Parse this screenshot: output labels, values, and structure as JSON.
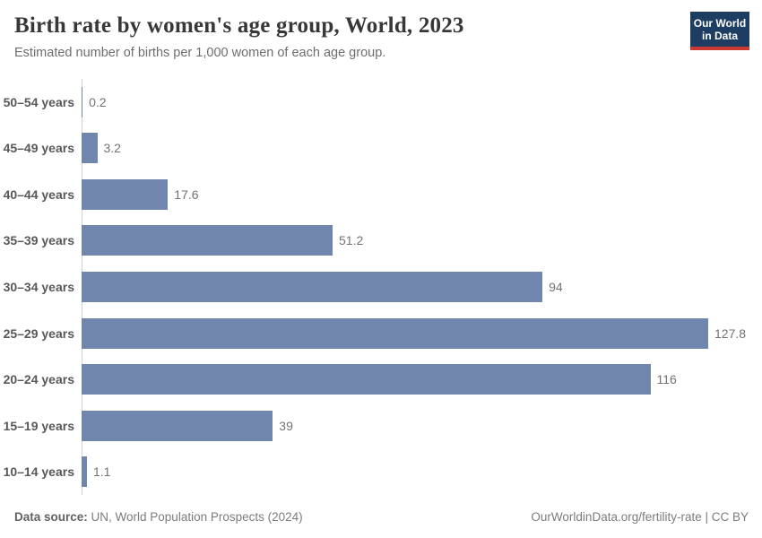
{
  "header": {
    "title": "Birth rate by women's age group, World, 2023",
    "subtitle": "Estimated number of births per 1,000 women of each age group.",
    "logo": {
      "line1": "Our World",
      "line2": "in Data"
    }
  },
  "chart_data": {
    "type": "bar",
    "orientation": "horizontal",
    "title": "Birth rate by women's age group, World, 2023",
    "subtitle": "Estimated number of births per 1,000 women of each age group.",
    "categories": [
      "50–54 years",
      "45–49 years",
      "40–44 years",
      "35–39 years",
      "30–34 years",
      "25–29 years",
      "20–24 years",
      "15–19 years",
      "10–14 years"
    ],
    "values": [
      0.2,
      3.2,
      17.6,
      51.2,
      94,
      127.8,
      116,
      39,
      1.1
    ],
    "value_labels": [
      "0.2",
      "3.2",
      "17.6",
      "51.2",
      "94",
      "127.8",
      "116",
      "39",
      "1.1"
    ],
    "xlabel": "",
    "ylabel": "",
    "xlim": [
      0,
      136
    ],
    "grid": false,
    "legend": false,
    "bar_color": "#7086ad"
  },
  "colors": {
    "bar": "#7086ad",
    "axis_line": "#cfd4dc",
    "logo_background": "#1d3d63",
    "logo_accent_red": "#cc3b33",
    "title_text": "#383838",
    "subtitle_text": "#6e6e6e",
    "value_text": "#737373"
  },
  "footer": {
    "data_source_label": "Data source:",
    "data_source_text": " UN, World Population Prospects (2024)",
    "attribution": "OurWorldinData.org/fertility-rate | CC BY"
  }
}
